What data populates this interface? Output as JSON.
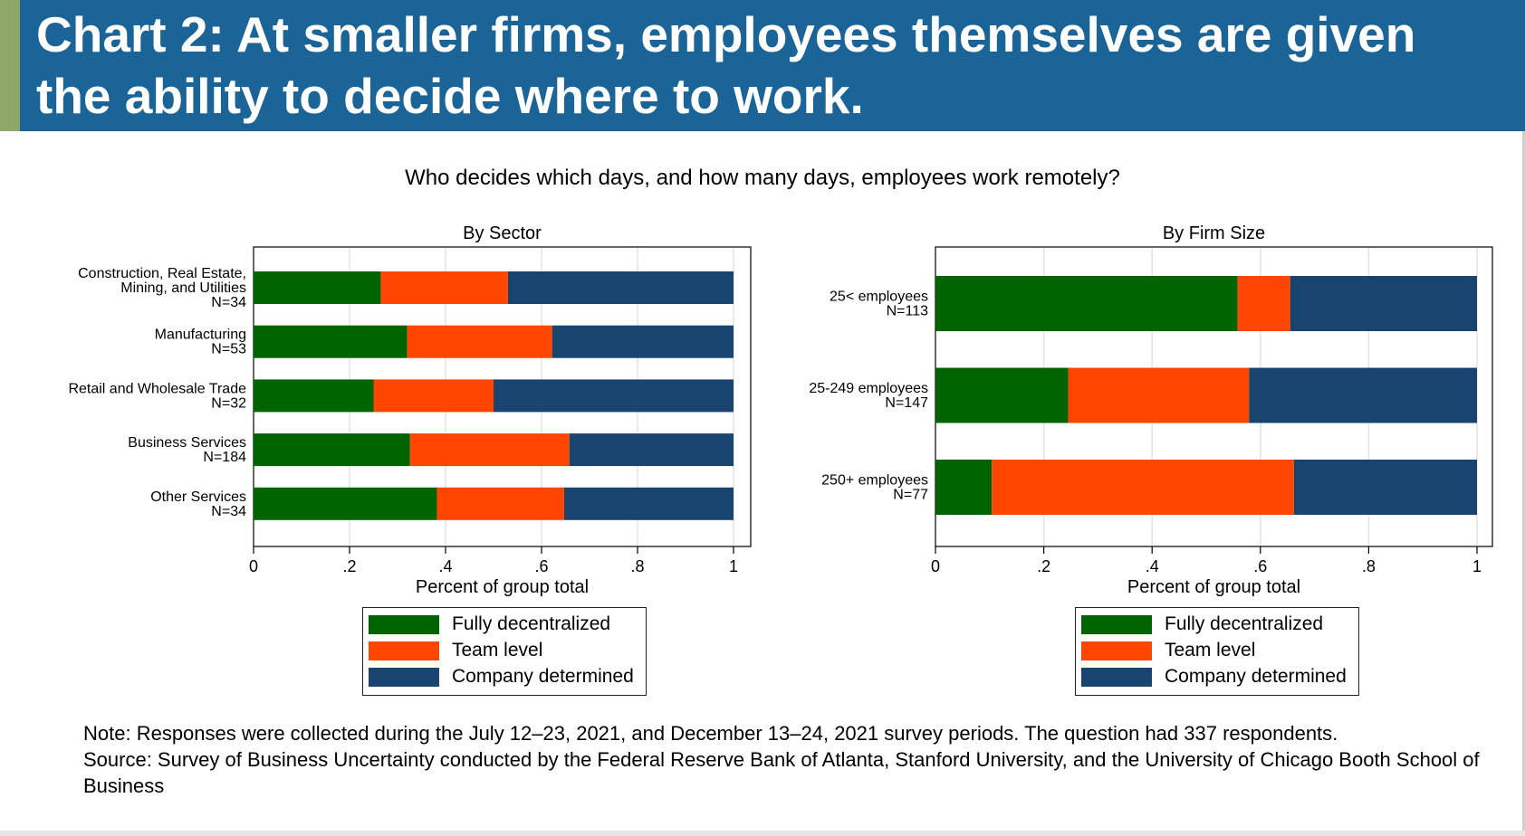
{
  "header": {
    "title": "Chart 2: At smaller firms, employees themselves are given the ability to decide where to work."
  },
  "subtitle": "Who decides which days, and how many days, employees work remotely?",
  "colors": {
    "header_bg": "#1b6498",
    "header_accent": "#8fa86a",
    "fully_decentralized": "#006400",
    "team_level": "#ff4500",
    "company_determined": "#1a4470"
  },
  "legend": {
    "items": [
      {
        "label": "Fully decentralized",
        "color": "#006400"
      },
      {
        "label": "Team level",
        "color": "#ff4500"
      },
      {
        "label": "Company determined",
        "color": "#1a4470"
      }
    ]
  },
  "chart_data": [
    {
      "type": "bar",
      "orientation": "horizontal",
      "stacked": true,
      "title": "By Sector",
      "xlabel": "Percent of group total",
      "ylabel": "",
      "xlim": [
        0,
        1
      ],
      "xticks": [
        "0",
        ".2",
        ".4",
        ".6",
        ".8",
        "1"
      ],
      "grid": true,
      "legend_position": "bottom",
      "categories": [
        [
          "Construction, Real Estate,",
          "Mining, and Utilities",
          "N=34"
        ],
        [
          "Manufacturing",
          "N=53"
        ],
        [
          "Retail and Wholesale Trade",
          "N=32"
        ],
        [
          "Business Services",
          "N=184"
        ],
        [
          "Other Services",
          "N=34"
        ]
      ],
      "series": [
        {
          "name": "Fully decentralized",
          "values": [
            0.265,
            0.32,
            0.25,
            0.326,
            0.382
          ]
        },
        {
          "name": "Team level",
          "values": [
            0.265,
            0.302,
            0.25,
            0.332,
            0.265
          ]
        },
        {
          "name": "Company determined",
          "values": [
            0.47,
            0.378,
            0.5,
            0.342,
            0.353
          ]
        }
      ]
    },
    {
      "type": "bar",
      "orientation": "horizontal",
      "stacked": true,
      "title": "By Firm Size",
      "xlabel": "Percent of group total",
      "ylabel": "",
      "xlim": [
        0,
        1
      ],
      "xticks": [
        "0",
        ".2",
        ".4",
        ".6",
        ".8",
        "1"
      ],
      "grid": true,
      "legend_position": "bottom",
      "categories": [
        [
          "25< employees",
          "N=113"
        ],
        [
          "25-249 employees",
          "N=147"
        ],
        [
          "250+ employees",
          "N=77"
        ]
      ],
      "series": [
        {
          "name": "Fully decentralized",
          "values": [
            0.558,
            0.245,
            0.104
          ]
        },
        {
          "name": "Team level",
          "values": [
            0.097,
            0.334,
            0.558
          ]
        },
        {
          "name": "Company determined",
          "values": [
            0.345,
            0.421,
            0.338
          ]
        }
      ]
    }
  ],
  "notes": {
    "note": "Note: Responses were collected during the July 12–23, 2021, and December 13–24, 2021 survey periods. The question had 337 respondents.",
    "source": "Source: Survey of Business Uncertainty conducted by the Federal Reserve Bank of Atlanta, Stanford University, and the University of Chicago Booth School of Business"
  }
}
